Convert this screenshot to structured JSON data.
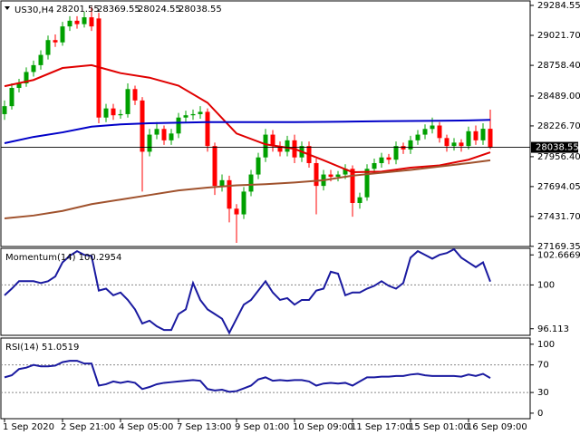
{
  "chart_data": [
    {
      "type": "candlestick",
      "title": "US30,H4",
      "categories": [
        "1 Sep 2020",
        null,
        null,
        null,
        null,
        null,
        null,
        null,
        "2 Sep 21:00",
        null,
        null,
        null,
        null,
        null,
        null,
        null,
        "4 Sep 05:00",
        null,
        null,
        null,
        null,
        null,
        null,
        null,
        "7 Sep 13:00",
        null,
        null,
        null,
        null,
        null,
        null,
        null,
        "9 Sep 01:00",
        null,
        null,
        null,
        null,
        null,
        null,
        null,
        "10 Sep 09:00",
        null,
        null,
        null,
        null,
        null,
        null,
        null,
        "11 Sep 17:00",
        null,
        null,
        null,
        null,
        null,
        null,
        null,
        "15 Sep 01:00",
        null,
        null,
        null,
        null,
        null,
        null,
        null,
        "16 Sep 09:00",
        null,
        null,
        null
      ],
      "open": [
        28330,
        28400,
        28560,
        28600,
        28700,
        28760,
        28850,
        28980,
        28960,
        29100,
        29150,
        29120,
        29180,
        29170,
        28300,
        28380,
        28320,
        28330,
        28550,
        28450,
        28000,
        28150,
        28200,
        28100,
        28160,
        28300,
        28320,
        28330,
        28350,
        28050,
        27700,
        27750,
        27500,
        27450,
        27650,
        27800,
        27950,
        28150,
        28050,
        28000,
        28100,
        27950,
        28050,
        27900,
        27700,
        27800,
        27780,
        27800,
        27850,
        27550,
        27600,
        27850,
        27900,
        27950,
        27930,
        28050,
        28020,
        28100,
        28150,
        28200,
        28230,
        28120,
        28050,
        28080,
        28050,
        28180,
        28100,
        28201.55
      ],
      "high": [
        28450,
        28600,
        28640,
        28740,
        28800,
        28890,
        29020,
        29030,
        29140,
        29190,
        29190,
        29230,
        29270,
        29220,
        28420,
        28420,
        28370,
        28600,
        28580,
        28480,
        28200,
        28260,
        28230,
        28200,
        28340,
        28360,
        28370,
        28400,
        28380,
        28080,
        27800,
        27790,
        27540,
        27690,
        27840,
        27990,
        28200,
        28190,
        28090,
        28140,
        28150,
        28090,
        28090,
        27940,
        27840,
        27840,
        27830,
        27890,
        27880,
        27640,
        27890,
        27940,
        27990,
        27980,
        28090,
        28080,
        28140,
        28190,
        28240,
        28300,
        28260,
        28150,
        28120,
        28110,
        28220,
        28230,
        28250,
        28369.55
      ],
      "low": [
        28280,
        28370,
        28520,
        28570,
        28660,
        28720,
        28810,
        28920,
        28930,
        29060,
        29080,
        29090,
        29060,
        28250,
        28260,
        28280,
        28290,
        28300,
        28410,
        27650,
        27960,
        28110,
        28060,
        28060,
        28120,
        28260,
        28280,
        28290,
        28000,
        27620,
        27650,
        27380,
        27200,
        27410,
        27610,
        27760,
        27910,
        28000,
        27960,
        27960,
        27900,
        27910,
        27860,
        27450,
        27660,
        27740,
        27740,
        27760,
        27430,
        27500,
        27570,
        27810,
        27860,
        27890,
        27890,
        27980,
        27980,
        28060,
        28110,
        28160,
        28080,
        28000,
        28010,
        28000,
        28020,
        28060,
        28060,
        28024.55
      ],
      "close": [
        28400,
        28560,
        28600,
        28700,
        28760,
        28850,
        28980,
        28960,
        29100,
        29150,
        29120,
        29180,
        29100,
        28300,
        28380,
        28320,
        28330,
        28550,
        28450,
        28000,
        28150,
        28200,
        28100,
        28160,
        28300,
        28320,
        28330,
        28350,
        28050,
        27700,
        27750,
        27500,
        27450,
        27650,
        27800,
        27950,
        28150,
        28050,
        28000,
        28100,
        27950,
        28050,
        27900,
        27700,
        27800,
        27780,
        27800,
        27850,
        27550,
        27600,
        27850,
        27900,
        27950,
        27930,
        28050,
        28020,
        28100,
        28150,
        28200,
        28230,
        28120,
        28050,
        28080,
        28050,
        28180,
        28100,
        28201.55,
        28038.55
      ],
      "up_color": "#00a000",
      "down_color": "#ff0000",
      "lines": [
        {
          "color": "#e00000",
          "x": [
            0,
            4,
            8,
            12,
            16,
            20,
            24,
            28,
            32,
            36,
            40,
            44,
            48,
            52,
            56,
            60,
            64,
            67
          ],
          "values": [
            28575,
            28630,
            28735,
            28760,
            28690,
            28650,
            28580,
            28430,
            28160,
            28065,
            28025,
            27925,
            27820,
            27825,
            27860,
            27880,
            27930,
            27995
          ]
        },
        {
          "color": "#0000c8",
          "x": [
            0,
            4,
            8,
            12,
            16,
            20,
            24,
            28,
            32,
            36,
            40,
            44,
            48,
            52,
            56,
            60,
            64,
            67
          ],
          "values": [
            28075,
            28130,
            28170,
            28220,
            28240,
            28250,
            28255,
            28260,
            28260,
            28260,
            28260,
            28262,
            28265,
            28268,
            28270,
            28272,
            28275,
            28280
          ]
        },
        {
          "color": "#a0522d",
          "x": [
            0,
            4,
            8,
            12,
            16,
            20,
            24,
            28,
            32,
            36,
            40,
            44,
            48,
            52,
            56,
            60,
            64,
            67
          ],
          "values": [
            27415,
            27440,
            27480,
            27540,
            27580,
            27620,
            27660,
            27685,
            27705,
            27715,
            27730,
            27750,
            27790,
            27815,
            27840,
            27870,
            27900,
            27925
          ]
        }
      ],
      "ylim": [
        27168,
        29324
      ],
      "yticks": [
        29284.55,
        {
          "value": 29021.7,
          "label": "29021.70"
        },
        {
          "value": 28758.4,
          "label": "28758.40"
        },
        {
          "value": 28489,
          "label": "28489.00"
        },
        {
          "value": 28226.7,
          "label": "28226.70"
        },
        {
          "value": 27956.4,
          "label": "27956.40"
        },
        27694.05,
        {
          "value": 27431.7,
          "label": "27431.70"
        },
        27169.35
      ]
    },
    {
      "type": "line",
      "title": "Momentum(14) 100.2954",
      "color": "#1a1aa0",
      "values": [
        99.08,
        99.67,
        100.33,
        100.33,
        100.33,
        100.17,
        100.33,
        100.75,
        102.0,
        102.58,
        103.0,
        102.67,
        102.58,
        99.5,
        99.67,
        99.08,
        99.33,
        98.67,
        97.83,
        96.58,
        96.83,
        96.33,
        96.0,
        96.0,
        97.42,
        97.83,
        100.17,
        98.67,
        97.83,
        97.42,
        97.0,
        95.75,
        97.0,
        98.25,
        98.67,
        99.5,
        100.33,
        99.33,
        98.67,
        98.83,
        98.25,
        98.67,
        98.67,
        99.5,
        99.67,
        101.17,
        101.0,
        99.08,
        99.33,
        99.33,
        99.67,
        99.92,
        100.33,
        99.92,
        99.67,
        100.17,
        102.42,
        103.0,
        102.67,
        102.33,
        102.67,
        102.83,
        103.17,
        102.42,
        102.0,
        101.58,
        102.0,
        100.2954
      ],
      "ylim": [
        95.53,
        103.25
      ],
      "yticks": [
        102.6669,
        100,
        96.113
      ],
      "levels": [
        100
      ]
    },
    {
      "type": "line",
      "title": "RSI(14) 51.0519",
      "color": "#1a1aa0",
      "values": [
        52,
        55,
        64,
        66,
        70,
        68,
        68,
        69,
        74,
        76,
        76,
        72,
        72,
        40,
        42,
        46,
        44,
        46,
        44,
        35,
        38,
        42,
        44,
        45,
        46,
        47,
        48,
        47,
        35,
        33,
        34,
        31,
        32,
        36,
        40,
        49,
        52,
        47,
        48,
        47,
        48,
        48,
        46,
        40,
        43,
        44,
        43,
        44,
        40,
        46,
        52,
        52,
        53,
        53,
        54,
        54,
        56,
        57,
        55,
        54,
        54,
        54,
        54,
        53,
        56,
        54,
        57,
        51.0519
      ],
      "ylim": [
        -8,
        109
      ],
      "yticks": [
        100,
        70,
        30,
        0
      ],
      "levels": [
        70,
        30
      ]
    }
  ]
}
